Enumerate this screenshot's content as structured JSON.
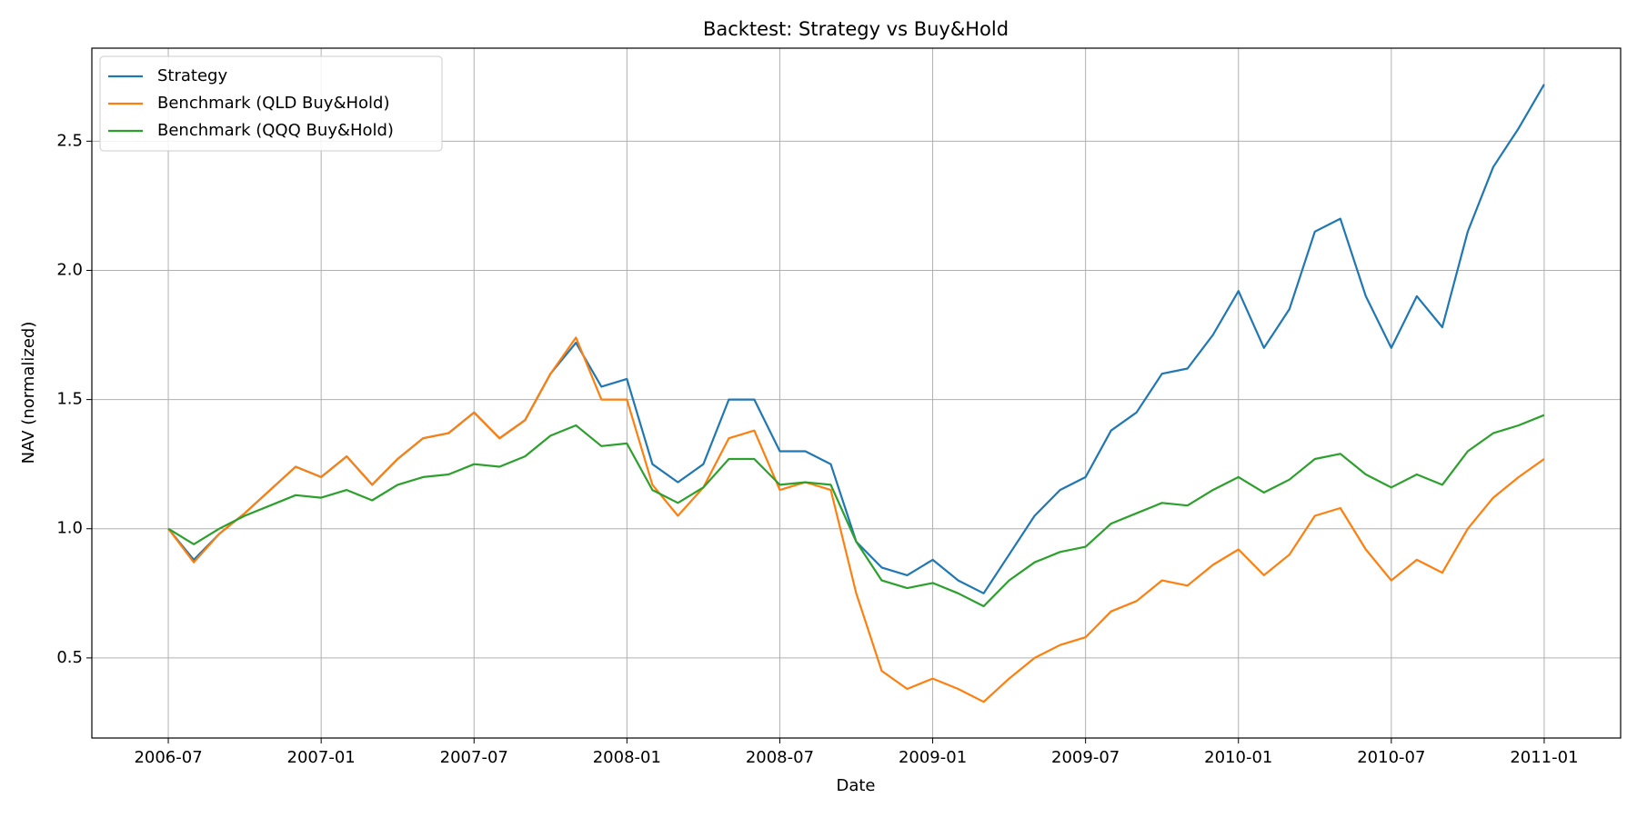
{
  "chart_data": {
    "type": "line",
    "title": "Backtest: Strategy vs Buy&Hold",
    "xlabel": "Date",
    "ylabel": "NAV (normalized)",
    "x": [
      "2006-07",
      "2006-08",
      "2006-09",
      "2006-10",
      "2006-11",
      "2006-12",
      "2007-01",
      "2007-02",
      "2007-03",
      "2007-04",
      "2007-05",
      "2007-06",
      "2007-07",
      "2007-08",
      "2007-09",
      "2007-10",
      "2007-11",
      "2007-12",
      "2008-01",
      "2008-02",
      "2008-03",
      "2008-04",
      "2008-05",
      "2008-06",
      "2008-07",
      "2008-08",
      "2008-09",
      "2008-10",
      "2008-11",
      "2008-12",
      "2009-01",
      "2009-02",
      "2009-03",
      "2009-04",
      "2009-05",
      "2009-06",
      "2009-07",
      "2009-08",
      "2009-09",
      "2009-10",
      "2009-11",
      "2009-12",
      "2010-01",
      "2010-02",
      "2010-03",
      "2010-04",
      "2010-05",
      "2010-06",
      "2010-07",
      "2010-08",
      "2010-09",
      "2010-10",
      "2010-11",
      "2010-12",
      "2011-01"
    ],
    "series": [
      {
        "name": "Strategy",
        "color": "#1f77b4",
        "values": [
          1.0,
          0.88,
          0.98,
          1.06,
          1.15,
          1.24,
          1.2,
          1.28,
          1.17,
          1.27,
          1.35,
          1.37,
          1.45,
          1.35,
          1.42,
          1.6,
          1.72,
          1.55,
          1.58,
          1.25,
          1.18,
          1.25,
          1.5,
          1.5,
          1.3,
          1.3,
          1.25,
          0.95,
          0.85,
          0.82,
          0.88,
          0.8,
          0.75,
          0.9,
          1.05,
          1.15,
          1.2,
          1.38,
          1.45,
          1.6,
          1.62,
          1.75,
          1.92,
          1.7,
          1.85,
          2.15,
          2.2,
          1.9,
          1.7,
          1.9,
          1.78,
          2.15,
          2.4,
          2.55,
          2.72
        ]
      },
      {
        "name": "Benchmark (QLD Buy&Hold)",
        "color": "#ff7f0e",
        "values": [
          1.0,
          0.87,
          0.98,
          1.06,
          1.15,
          1.24,
          1.2,
          1.28,
          1.17,
          1.27,
          1.35,
          1.37,
          1.45,
          1.35,
          1.42,
          1.6,
          1.74,
          1.5,
          1.5,
          1.17,
          1.05,
          1.16,
          1.35,
          1.38,
          1.15,
          1.18,
          1.15,
          0.75,
          0.45,
          0.38,
          0.42,
          0.38,
          0.33,
          0.42,
          0.5,
          0.55,
          0.58,
          0.68,
          0.72,
          0.8,
          0.78,
          0.86,
          0.92,
          0.82,
          0.9,
          1.05,
          1.08,
          0.92,
          0.8,
          0.88,
          0.83,
          1.0,
          1.12,
          1.2,
          1.27
        ]
      },
      {
        "name": "Benchmark (QQQ Buy&Hold)",
        "color": "#2ca02c",
        "values": [
          1.0,
          0.94,
          1.0,
          1.05,
          1.09,
          1.13,
          1.12,
          1.15,
          1.11,
          1.17,
          1.2,
          1.21,
          1.25,
          1.24,
          1.28,
          1.36,
          1.4,
          1.32,
          1.33,
          1.15,
          1.1,
          1.16,
          1.27,
          1.27,
          1.17,
          1.18,
          1.17,
          0.95,
          0.8,
          0.77,
          0.79,
          0.75,
          0.7,
          0.8,
          0.87,
          0.91,
          0.93,
          1.02,
          1.06,
          1.1,
          1.09,
          1.15,
          1.2,
          1.14,
          1.19,
          1.27,
          1.29,
          1.21,
          1.16,
          1.21,
          1.17,
          1.3,
          1.37,
          1.4,
          1.44
        ]
      }
    ],
    "xlim": [
      "2006-04",
      "2011-04"
    ],
    "xticks": [
      "2006-07",
      "2007-01",
      "2007-07",
      "2008-01",
      "2008-07",
      "2009-01",
      "2009-07",
      "2010-01",
      "2010-07",
      "2011-01"
    ],
    "ylim": [
      0.19,
      2.86
    ],
    "yticks": [
      0.5,
      {
        "value": 1.0,
        "label": "1.0"
      },
      1.5,
      {
        "value": 2.0,
        "label": "2.0"
      },
      2.5
    ],
    "grid": true,
    "legend": "upper-left"
  }
}
